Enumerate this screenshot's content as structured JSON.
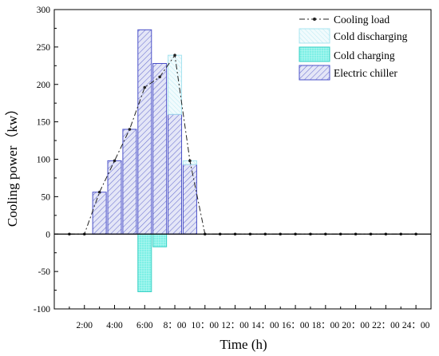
{
  "chart_data": {
    "type": "bar",
    "xlabel": "Time (h)",
    "ylabel": "Cooling power（kw）",
    "ylim": [
      -100,
      300
    ],
    "yticks": [
      -100,
      -50,
      0,
      50,
      100,
      150,
      200,
      250,
      300
    ],
    "x_range": [
      0,
      25
    ],
    "x_tick_positions": [
      2,
      4,
      6,
      8,
      10,
      12,
      14,
      16,
      18,
      20,
      22,
      24
    ],
    "x_tick_labels": [
      "2:00",
      "4:00",
      "6:00",
      "8：00",
      "10：00",
      "12：00",
      "14：00",
      "16：00",
      "18：00",
      "20：00",
      "22：00",
      "24：00"
    ],
    "legend_position": "top-right",
    "legend": {
      "cooling_load": "Cooling load",
      "cold_discharging": "Cold discharging",
      "cold_charging": "Cold charging",
      "electric_chiller": "Electric chiller"
    },
    "colors": {
      "load_line": "#222222",
      "discharging": "#a8e4f0",
      "charging_fill": "#8ff3ea",
      "charging_edge": "#35cfc4",
      "chiller": "#4a50c8",
      "chiller_fill": "#d8dcf3"
    },
    "cooling_load": {
      "x": [
        1,
        2,
        3,
        4,
        5,
        6,
        7,
        8,
        9,
        10,
        11,
        12,
        13,
        14,
        15,
        16,
        17,
        18,
        19,
        20,
        21,
        22,
        23,
        24
      ],
      "y": [
        0,
        0,
        56,
        98,
        140,
        196,
        210,
        239,
        98,
        0,
        0,
        0,
        0,
        0,
        0,
        0,
        0,
        0,
        0,
        0,
        0,
        0,
        0,
        0
      ]
    },
    "bars": {
      "x": [
        3,
        4,
        5,
        6,
        7,
        8,
        9
      ],
      "electric_chiller": [
        56,
        98,
        140,
        273,
        228,
        160,
        93
      ],
      "cold_discharging": [
        0,
        0,
        0,
        0,
        0,
        79,
        5
      ],
      "cold_charging": [
        0,
        0,
        0,
        -77,
        -17,
        0,
        0
      ]
    }
  }
}
